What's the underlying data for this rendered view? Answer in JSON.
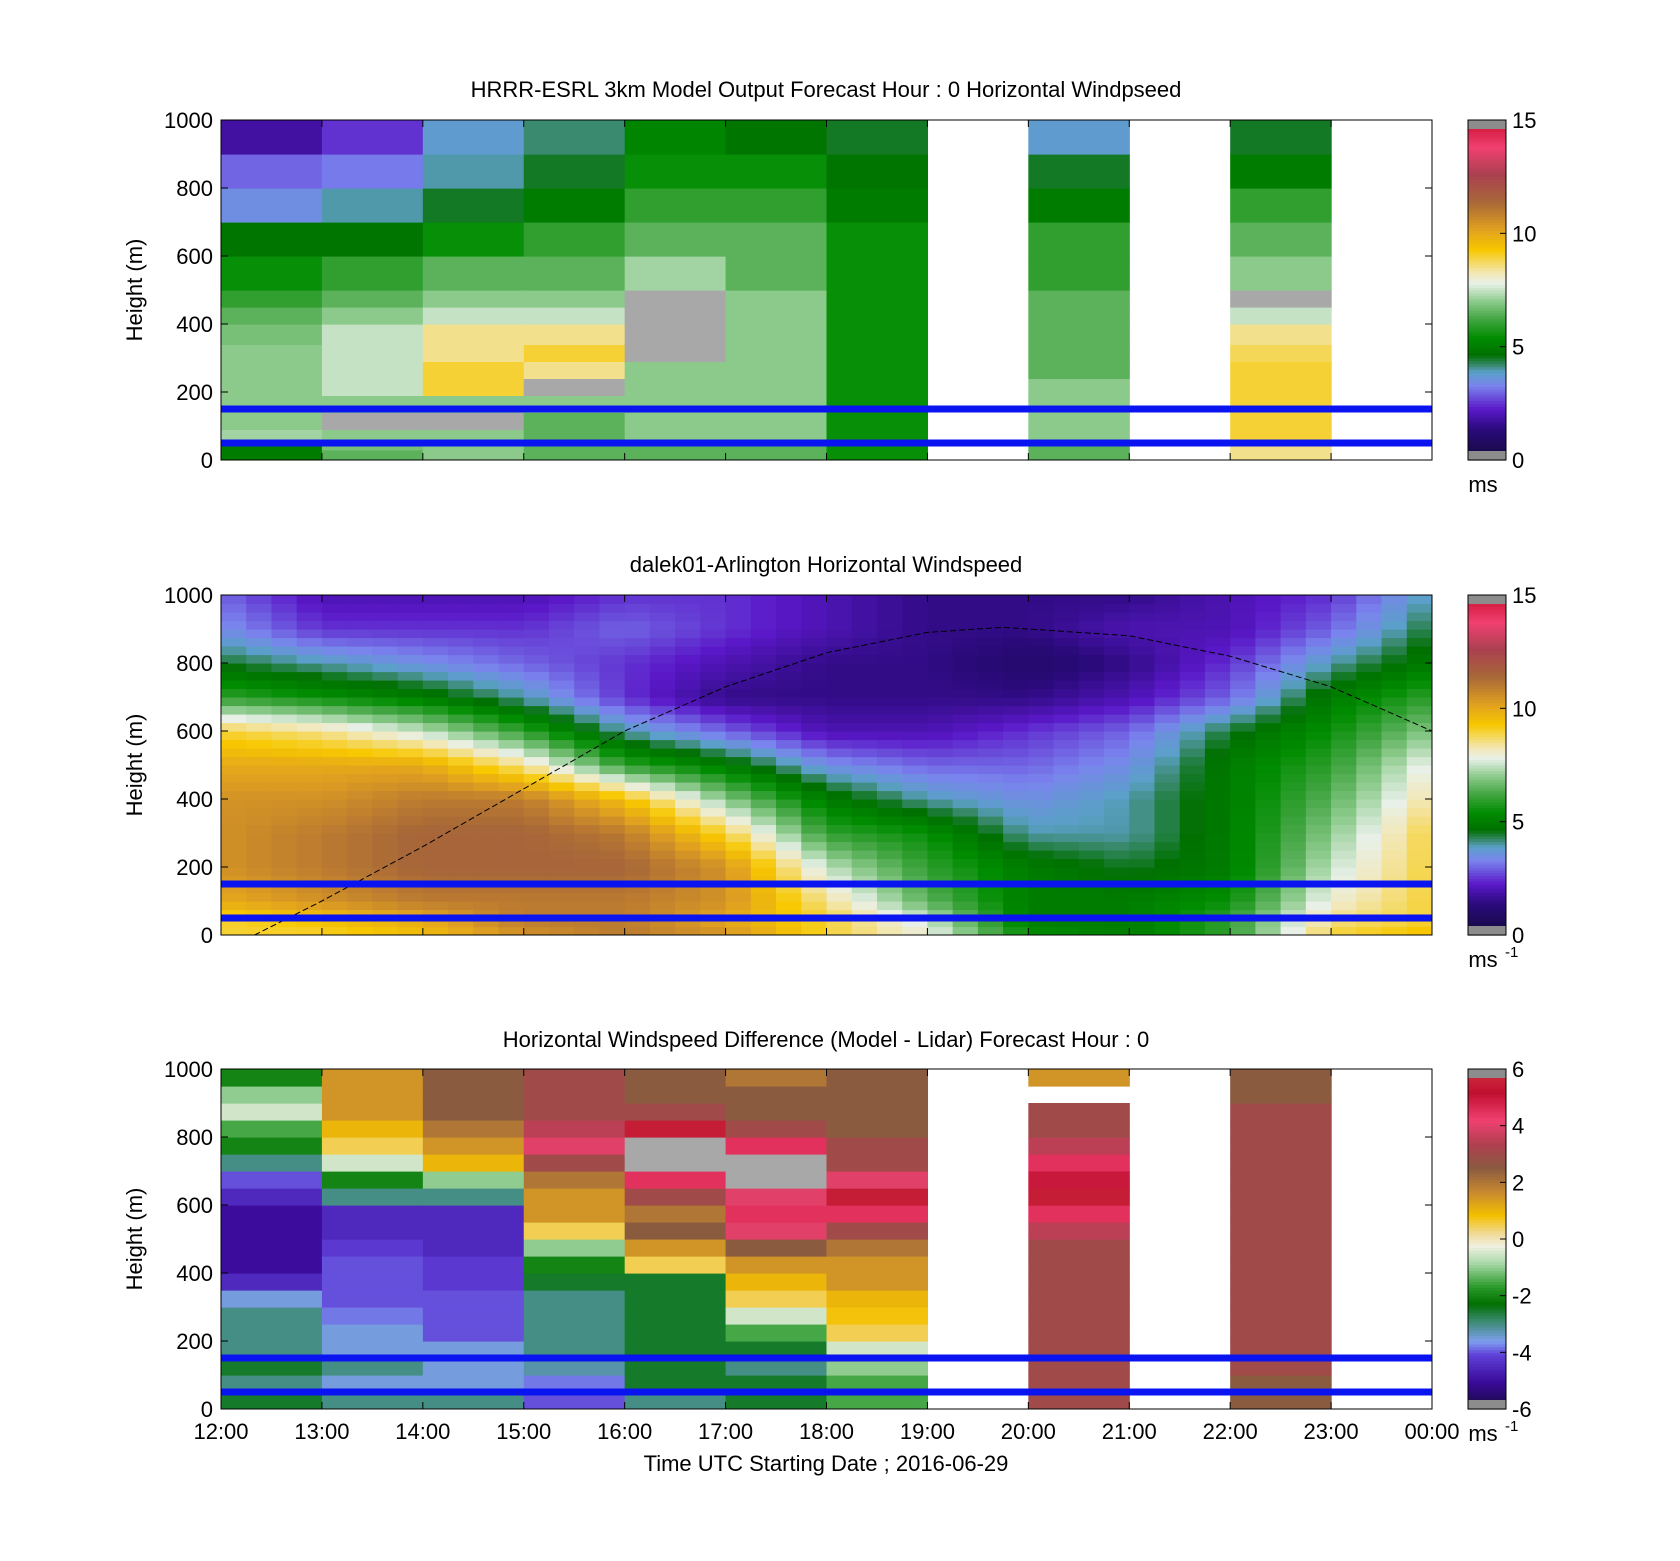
{
  "figure": {
    "xlabel": "Time UTC  Starting Date ; 2016-06-29",
    "x_ticks": [
      "12:00",
      "13:00",
      "14:00",
      "15:00",
      "16:00",
      "17:00",
      "18:00",
      "19:00",
      "20:00",
      "21:00",
      "22:00",
      "23:00",
      "00:00"
    ],
    "y_ticks": [
      "0",
      "200",
      "400",
      "600",
      "800",
      "1000"
    ],
    "ylabel": "Height (m)"
  },
  "colors": {
    "reference_lines": "#0a14f0",
    "missing": "#ffffff",
    "nan_gray": "#a8a8a8"
  },
  "chart_data": [
    {
      "type": "heatmap",
      "title": "HRRR-ESRL 3km Model Output   Forecast Hour : 0 Horizontal Windpseed",
      "ylabel": "Height (m)",
      "ylim": [
        0,
        1000
      ],
      "x_range": [
        "12:00",
        "00:00"
      ],
      "colorbar": {
        "ticks": [
          "0",
          "5",
          "10",
          "15"
        ],
        "range": [
          0,
          15
        ],
        "unit": "ms"
      },
      "reference_heights": [
        150,
        50
      ],
      "column_hours": [
        "12:00",
        "13:00",
        "14:00",
        "15:00",
        "16:00",
        "17:00",
        "18:00",
        "19:00",
        "20:00",
        "21:00",
        "22:00",
        "23:00"
      ],
      "layer_tops": [
        30,
        50,
        90,
        140,
        190,
        240,
        290,
        340,
        400,
        450,
        500,
        600,
        700,
        800,
        900,
        1000
      ],
      "values": [
        [
          5,
          6.5,
          7,
          6.5,
          6.5,
          6.5,
          5.5,
          null,
          6.5,
          null,
          8.5,
          null
        ],
        [
          5,
          6.8,
          7,
          6.5,
          6.5,
          6.5,
          5.5,
          null,
          6.5,
          null,
          8.5,
          null
        ],
        [
          7.2,
          7,
          7,
          6.5,
          7,
          7,
          5.5,
          null,
          7,
          null,
          9,
          null
        ],
        [
          7,
          "nan",
          "nan",
          6.5,
          7,
          7,
          5.5,
          null,
          7,
          null,
          9,
          null
        ],
        [
          7,
          7,
          7,
          7,
          7,
          7,
          5.5,
          null,
          7,
          null,
          9,
          null
        ],
        [
          7,
          7.5,
          9,
          "nan",
          7,
          7,
          5.5,
          null,
          7,
          null,
          9,
          null
        ],
        [
          7,
          7.5,
          9,
          8.5,
          7,
          7,
          5.5,
          null,
          6.5,
          null,
          9,
          null
        ],
        [
          7,
          7.5,
          8.5,
          9,
          "nan",
          7,
          5.5,
          null,
          6.5,
          null,
          8.8,
          null
        ],
        [
          6.8,
          7.5,
          8.5,
          8.5,
          "nan",
          7,
          5.5,
          null,
          6.5,
          null,
          8.5,
          null
        ],
        [
          6.5,
          7,
          7.5,
          7.5,
          "nan",
          7,
          5.5,
          null,
          6.5,
          null,
          7.5,
          null
        ],
        [
          6,
          6.5,
          7,
          7,
          "nan",
          7,
          5.5,
          null,
          6.5,
          null,
          "nan",
          null
        ],
        [
          5.5,
          6,
          6.5,
          6.5,
          7.2,
          6.5,
          5.5,
          null,
          6,
          null,
          7,
          null
        ],
        [
          4.8,
          4.8,
          5.5,
          6,
          6.5,
          6.5,
          5.5,
          null,
          6,
          null,
          6.5,
          null
        ],
        [
          3.5,
          4,
          4.5,
          5,
          6,
          6,
          5,
          null,
          5,
          null,
          6,
          null
        ],
        [
          3,
          3.2,
          4,
          4.5,
          5.5,
          5.5,
          4.8,
          null,
          4.5,
          null,
          5,
          null
        ],
        [
          1.8,
          2.5,
          3.8,
          4.2,
          5.2,
          4.8,
          4.5,
          null,
          3.8,
          null,
          4.5,
          null
        ]
      ]
    },
    {
      "type": "heatmap",
      "title": "dalek01-Arlington  Horizontal Windspeed",
      "ylabel": "Height (m)",
      "ylim": [
        0,
        1000
      ],
      "x_range": [
        "12:00",
        "00:00"
      ],
      "colorbar": {
        "ticks": [
          "0",
          "5",
          "10",
          "15"
        ],
        "range": [
          0,
          15
        ],
        "unit": "ms",
        "unit_superscript": "-1"
      },
      "reference_heights": [
        150,
        50
      ],
      "boundary_layer_curve": [
        {
          "x": "12:20",
          "y": 0
        },
        {
          "x": "13:00",
          "y": 100
        },
        {
          "x": "14:00",
          "y": 260
        },
        {
          "x": "15:00",
          "y": 430
        },
        {
          "x": "16:00",
          "y": 600
        },
        {
          "x": "17:00",
          "y": 730
        },
        {
          "x": "18:00",
          "y": 830
        },
        {
          "x": "19:00",
          "y": 890
        },
        {
          "x": "19:45",
          "y": 905
        },
        {
          "x": "21:00",
          "y": 880
        },
        {
          "x": "22:00",
          "y": 820
        },
        {
          "x": "23:00",
          "y": 730
        },
        {
          "x": "00:00",
          "y": 600
        }
      ],
      "profile_hours": [
        12,
        13,
        14,
        15,
        16,
        17,
        18,
        19,
        20,
        21,
        22,
        23,
        24
      ],
      "layer_heights": [
        0,
        50,
        100,
        200,
        300,
        400,
        500,
        600,
        700,
        800,
        900,
        1000
      ],
      "values": [
        [
          9,
          9,
          9.5,
          10.5,
          11,
          10.5,
          9,
          8,
          5.5,
          5,
          6,
          9,
          9.5
        ],
        [
          9,
          9.5,
          10,
          11,
          11,
          10,
          9,
          7.5,
          5,
          5,
          6,
          8.5,
          9
        ],
        [
          10,
          10.5,
          11,
          11,
          11,
          10.5,
          8.5,
          6.5,
          5,
          5,
          5.5,
          8,
          9
        ],
        [
          10.5,
          11,
          11.5,
          11.5,
          11.5,
          10.5,
          7.5,
          6,
          5,
          4.5,
          5,
          7.5,
          9
        ],
        [
          10.5,
          11,
          11.5,
          11.5,
          11,
          9,
          6,
          5.5,
          4,
          4,
          5,
          7,
          9
        ],
        [
          10.5,
          10.5,
          11,
          11,
          9.5,
          7,
          5,
          4,
          3.5,
          4,
          5,
          6.5,
          8.5
        ],
        [
          10,
          10,
          10,
          8.5,
          6,
          5,
          3.5,
          3,
          3,
          3.5,
          5,
          6,
          8
        ],
        [
          9,
          8.5,
          7.5,
          6,
          4,
          3,
          2,
          2,
          2.5,
          3,
          4.5,
          5.5,
          7
        ],
        [
          6,
          5.5,
          5,
          4,
          2.5,
          1.5,
          1.5,
          1.5,
          1.5,
          2,
          3,
          5,
          6
        ],
        [
          4.5,
          4,
          3.5,
          3,
          2.5,
          2,
          1.5,
          1.5,
          1,
          1.5,
          2.5,
          4,
          5
        ],
        [
          3.5,
          2.5,
          2.5,
          2.5,
          3,
          2.5,
          2,
          1.5,
          1.5,
          2,
          2,
          3,
          4.5
        ],
        [
          3,
          2,
          2,
          2,
          2.5,
          2.5,
          2,
          1.5,
          1.5,
          1.5,
          2,
          2.5,
          4
        ]
      ]
    },
    {
      "type": "heatmap",
      "title": "Horizontal Windspeed Difference (Model - Lidar) Forecast Hour : 0",
      "ylabel": "Height (m)",
      "ylim": [
        0,
        1000
      ],
      "x_range": [
        "12:00",
        "00:00"
      ],
      "colorbar": {
        "ticks": [
          "-6",
          "-4",
          "-2",
          "0",
          "2",
          "4",
          "6"
        ],
        "range": [
          -6,
          6
        ],
        "unit": "ms",
        "unit_superscript": "-1"
      },
      "reference_heights": [
        150,
        50
      ],
      "column_hours": [
        "12:00",
        "13:00",
        "14:00",
        "15:00",
        "16:00",
        "17:00",
        "18:00",
        "19:00",
        "20:00",
        "21:00",
        "22:00",
        "23:00"
      ],
      "profile_heights": [
        0,
        50,
        100,
        150,
        200,
        250,
        300,
        350,
        400,
        450,
        500,
        550,
        600,
        650,
        700,
        750,
        800,
        850,
        900,
        950,
        1000
      ],
      "profiles": [
        [
          -2.5,
          -3,
          -2.5,
          -3,
          -3,
          -3,
          -3.5,
          -4.5,
          -5,
          -5,
          -5,
          -5,
          -4.5,
          -4,
          -3,
          -2,
          -1.5,
          -0.5,
          -1,
          -2,
          null
        ],
        [
          -3,
          -3.5,
          -3,
          -3.5,
          -3.5,
          -3.8,
          -4,
          -4,
          -4,
          -4.2,
          -4.5,
          -4.5,
          -3,
          -2,
          -0.5,
          0.5,
          1,
          1.5,
          1.5,
          1.5,
          null
        ],
        [
          -3,
          -3.5,
          -3.5,
          -3.5,
          -4,
          -4,
          -4,
          -4.2,
          -4.2,
          -4.5,
          -4.5,
          -4.5,
          -3,
          -1,
          1,
          1.5,
          2,
          2.5,
          2.5,
          2.5,
          2.5
        ],
        [
          -4,
          -3.8,
          -3.2,
          -3,
          -3,
          -3,
          -3,
          -2.5,
          -2,
          -1,
          0.5,
          1.5,
          1.5,
          2,
          3,
          4,
          3.5,
          3,
          3,
          3,
          3
        ],
        [
          -3,
          -2.5,
          -2.5,
          -2.5,
          -2.5,
          -2.5,
          -2.5,
          -2.5,
          0.5,
          1.5,
          2.5,
          2,
          3,
          4.5,
          "nan",
          "nan",
          5.5,
          3,
          2.5,
          2.5,
          2.5
        ],
        [
          -2.5,
          -2.5,
          -3,
          -2.5,
          -1.5,
          -0.5,
          0.5,
          1,
          1.5,
          2.5,
          4,
          4.5,
          4,
          "nan",
          "nan",
          4.5,
          3,
          2.5,
          2.5,
          2,
          2
        ],
        [
          -1.5,
          -1.5,
          -1,
          -0.5,
          0.5,
          0.8,
          1,
          1.5,
          1.5,
          2,
          3,
          4.5,
          5.5,
          4,
          3,
          3,
          2.5,
          2.5,
          2.5,
          2.5,
          2.5
        ],
        [
          null,
          null,
          null,
          null,
          null,
          null,
          null,
          null,
          null,
          null,
          null,
          null,
          null,
          null,
          null,
          null,
          null,
          null,
          null,
          null,
          null
        ],
        [
          3,
          3,
          3,
          3,
          3,
          3,
          3,
          3,
          3,
          3,
          3.5,
          4.5,
          5.5,
          5,
          4.5,
          3.5,
          3,
          3,
          null,
          1.5,
          null
        ],
        [
          null,
          null,
          null,
          null,
          null,
          null,
          null,
          null,
          null,
          null,
          null,
          null,
          null,
          null,
          null,
          null,
          null,
          null,
          null,
          null,
          null
        ],
        [
          2.5,
          2.5,
          3,
          3,
          3,
          3,
          3,
          3,
          3,
          3,
          3,
          3,
          3,
          3,
          3,
          3,
          3,
          3,
          2.5,
          2.5,
          2.5
        ],
        [
          null,
          null,
          null,
          null,
          null,
          null,
          null,
          null,
          null,
          null,
          null,
          null,
          null,
          null,
          null,
          null,
          null,
          null,
          null,
          null,
          null
        ]
      ]
    }
  ]
}
